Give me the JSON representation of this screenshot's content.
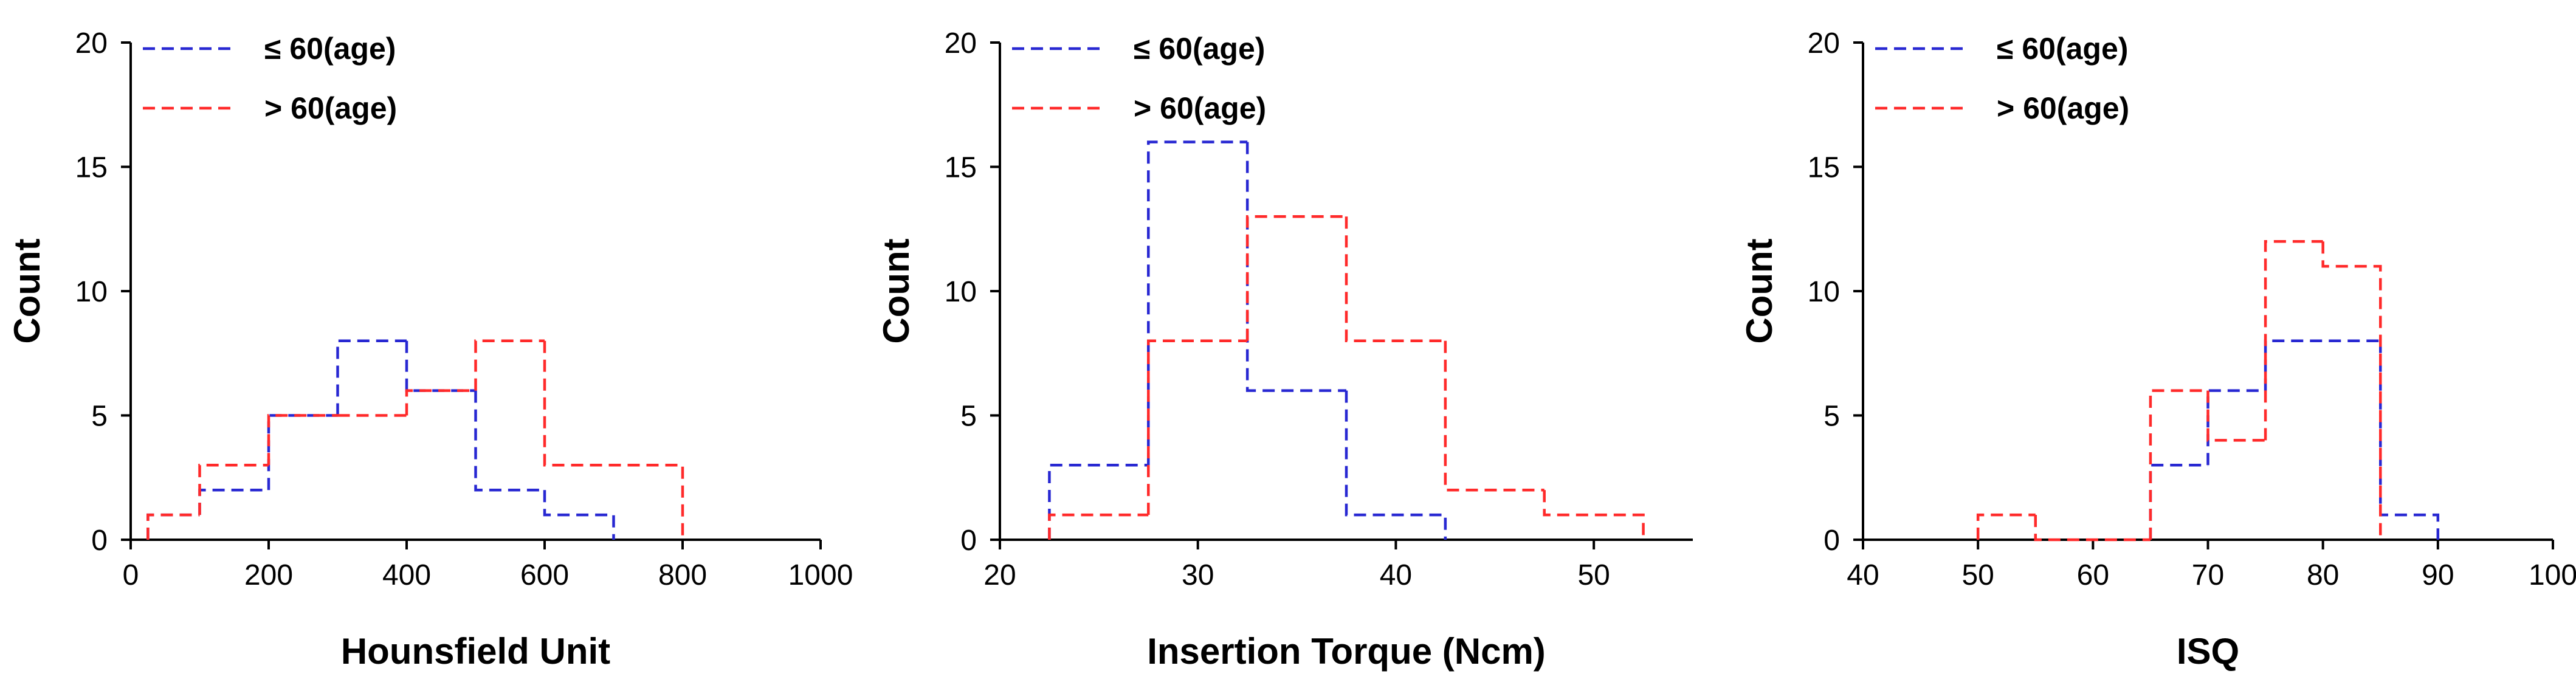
{
  "colors": {
    "young": "#2828d2",
    "old": "#ff2a2a",
    "axis": "#000000"
  },
  "chart_data": [
    {
      "type": "histogram",
      "xlabel": "Hounsfield Unit",
      "ylabel": "Count",
      "xlim": [
        0,
        1000
      ],
      "ylim": [
        0,
        20
      ],
      "xticks": [
        "0",
        "200",
        "400",
        "600",
        "800",
        "1000"
      ],
      "xtick_values": [
        0,
        200,
        400,
        600,
        800,
        1000
      ],
      "yticks": [
        "0",
        "5",
        "10",
        "15",
        "20"
      ],
      "ytick_values": [
        0,
        5,
        10,
        15,
        20
      ],
      "grid": false,
      "legend_position": "top-left",
      "series": [
        {
          "name": "≤ 60(age)",
          "color_key": "young",
          "edges": [
            25,
            100,
            200,
            300,
            400,
            500,
            600,
            700
          ],
          "counts": [
            1,
            2,
            5,
            8,
            6,
            2,
            1
          ]
        },
        {
          "name": "> 60(age)",
          "color_key": "old",
          "edges": [
            25,
            100,
            200,
            300,
            400,
            500,
            600,
            800
          ],
          "counts": [
            1,
            3,
            5,
            5,
            6,
            8,
            3
          ]
        }
      ]
    },
    {
      "type": "histogram",
      "xlabel": "Insertion Torque (Ncm)",
      "ylabel": "Count",
      "xlim": [
        20,
        55
      ],
      "ylim": [
        0,
        20
      ],
      "xticks": [
        "20",
        "30",
        "40",
        "50"
      ],
      "xtick_values": [
        20,
        30,
        40,
        50
      ],
      "yticks": [
        "0",
        "5",
        "10",
        "15",
        "20"
      ],
      "ytick_values": [
        0,
        5,
        10,
        15,
        20
      ],
      "grid": false,
      "legend_position": "top-left",
      "series": [
        {
          "name": "≤ 60(age)",
          "color_key": "young",
          "edges": [
            22.5,
            27.5,
            32.5,
            37.5,
            42.5
          ],
          "counts": [
            3,
            16,
            6,
            1
          ]
        },
        {
          "name": "> 60(age)",
          "color_key": "old",
          "edges": [
            22.5,
            27.5,
            32.5,
            37.5,
            42.5,
            47.5,
            52.5
          ],
          "counts": [
            1,
            8,
            13,
            8,
            2,
            1
          ]
        }
      ]
    },
    {
      "type": "histogram",
      "xlabel": "ISQ",
      "ylabel": "Count",
      "xlim": [
        40,
        100
      ],
      "ylim": [
        0,
        20
      ],
      "xticks": [
        "40",
        "50",
        "60",
        "70",
        "80",
        "90",
        "100"
      ],
      "xtick_values": [
        40,
        50,
        60,
        70,
        80,
        90,
        100
      ],
      "yticks": [
        "0",
        "5",
        "10",
        "15",
        "20"
      ],
      "ytick_values": [
        0,
        5,
        10,
        15,
        20
      ],
      "grid": false,
      "legend_position": "top-left",
      "series": [
        {
          "name": "≤ 60(age)",
          "color_key": "young",
          "edges": [
            65,
            70,
            75,
            85,
            90
          ],
          "counts": [
            3,
            6,
            8,
            1
          ]
        },
        {
          "name": "> 60(age)",
          "color_key": "old",
          "edges": [
            50,
            55,
            65,
            70,
            75,
            80,
            85
          ],
          "counts": [
            1,
            0,
            6,
            4,
            12,
            11
          ]
        }
      ]
    }
  ]
}
